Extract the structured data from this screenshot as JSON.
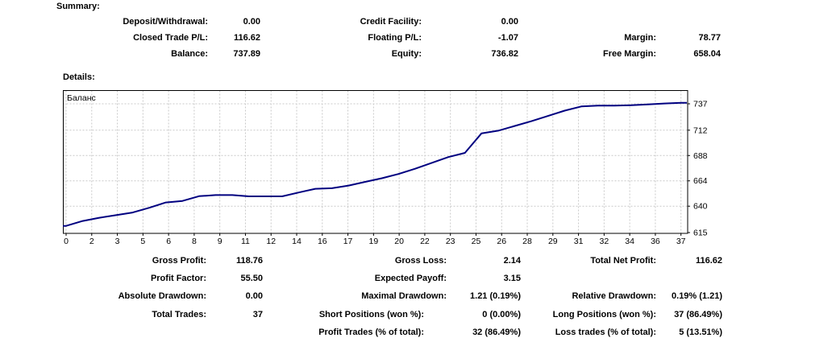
{
  "summary": {
    "heading": "Summary:",
    "rows": [
      [
        "Deposit/Withdrawal:",
        "0.00",
        "Credit Facility:",
        "0.00",
        "",
        ""
      ],
      [
        "Closed Trade P/L:",
        "116.62",
        "Floating P/L:",
        "-1.07",
        "Margin:",
        "78.77"
      ],
      [
        "Balance:",
        "737.89",
        "Equity:",
        "736.82",
        "Free Margin:",
        "658.04"
      ]
    ]
  },
  "details": {
    "heading": "Details:"
  },
  "results": {
    "profit_rows": [
      [
        "Gross Profit:",
        "118.76",
        "Gross Loss:",
        "2.14",
        "Total Net Profit:",
        "116.62"
      ],
      [
        "Profit Factor:",
        "55.50",
        "Expected Payoff:",
        "3.15",
        "",
        ""
      ],
      [
        "Absolute Drawdown:",
        "0.00",
        "Maximal Drawdown:",
        "1.21 (0.19%)",
        "Relative Drawdown:",
        "0.19% (1.21)"
      ]
    ],
    "trade_rows": [
      [
        "Total Trades:",
        "37",
        "Short Positions (won %):",
        "0 (0.00%)",
        "Long Positions (won %):",
        "37 (86.49%)"
      ],
      [
        "",
        "",
        "Profit Trades (% of total):",
        "32 (86.49%)",
        "Loss trades (% of total):",
        "5 (13.51%)"
      ]
    ]
  },
  "chart_data": {
    "type": "line",
    "title": "Баланс",
    "series_label": "Баланс",
    "xlabel": "",
    "ylabel": "",
    "line_color": "#000080",
    "grid_color": "#c9c9c9",
    "border_color": "#000000",
    "ylim": [
      615,
      750
    ],
    "grid": "dashed",
    "legend_position": "top-left-inside",
    "x_tick_labels": [
      "0",
      "2",
      "3",
      "5",
      "6",
      "8",
      "9",
      "11",
      "12",
      "14",
      "16",
      "17",
      "19",
      "20",
      "22",
      "23",
      "25",
      "26",
      "28",
      "29",
      "31",
      "32",
      "34",
      "36",
      "37"
    ],
    "y_tick_labels": [
      "737",
      "712",
      "688",
      "664",
      "640",
      "615"
    ],
    "x": [
      0,
      1,
      2,
      3,
      4,
      5,
      6,
      7,
      8,
      9,
      10,
      11,
      12,
      13,
      14,
      15,
      16,
      17,
      18,
      19,
      20,
      21,
      22,
      23,
      24,
      25,
      26,
      27,
      28,
      29,
      30,
      31,
      32,
      33,
      34,
      35,
      36,
      37
    ],
    "values": [
      621.3,
      626.0,
      629.0,
      631.5,
      634.0,
      638.5,
      643.5,
      645.0,
      649.5,
      650.5,
      650.5,
      649.3,
      649.3,
      649.3,
      653.0,
      656.5,
      657.0,
      659.5,
      663.0,
      666.5,
      670.5,
      675.5,
      681.0,
      686.5,
      690.5,
      709.0,
      711.5,
      716.0,
      720.5,
      725.5,
      730.5,
      734.5,
      735.3,
      735.3,
      735.6,
      736.5,
      737.3,
      737.9
    ]
  }
}
